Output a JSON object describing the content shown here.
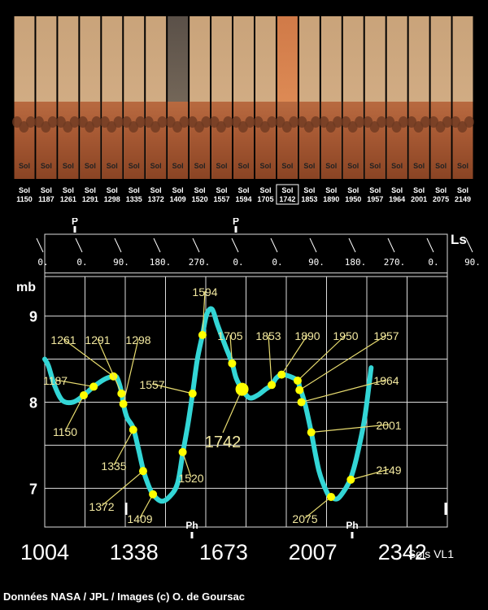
{
  "panorama": {
    "sol_prefix": "Sol",
    "strips": [
      {
        "sol": "1150",
        "tone": "normal"
      },
      {
        "sol": "1187",
        "tone": "normal"
      },
      {
        "sol": "1261",
        "tone": "normal"
      },
      {
        "sol": "1291",
        "tone": "normal"
      },
      {
        "sol": "1298",
        "tone": "normal"
      },
      {
        "sol": "1335",
        "tone": "normal"
      },
      {
        "sol": "1372",
        "tone": "normal"
      },
      {
        "sol": "1409",
        "tone": "dark"
      },
      {
        "sol": "1520",
        "tone": "normal"
      },
      {
        "sol": "1557",
        "tone": "normal"
      },
      {
        "sol": "1594",
        "tone": "normal"
      },
      {
        "sol": "1705",
        "tone": "normal"
      },
      {
        "sol": "1742",
        "tone": "dusty",
        "boxed": true
      },
      {
        "sol": "1853",
        "tone": "normal"
      },
      {
        "sol": "1890",
        "tone": "normal"
      },
      {
        "sol": "1950",
        "tone": "normal"
      },
      {
        "sol": "1957",
        "tone": "normal"
      },
      {
        "sol": "1964",
        "tone": "normal"
      },
      {
        "sol": "2001",
        "tone": "normal"
      },
      {
        "sol": "2075",
        "tone": "normal"
      },
      {
        "sol": "2149",
        "tone": "normal"
      }
    ]
  },
  "chart_data": {
    "type": "line",
    "ylabel": "mb",
    "yticks": [
      "9",
      "8",
      "7"
    ],
    "ylim": [
      6.55,
      9.95
    ],
    "xlim": [
      1004,
      2510
    ],
    "xticks": [
      "1004",
      "1338",
      "1673",
      "2007",
      "2342"
    ],
    "xlabel": "Sols VL1",
    "top_axis_label": "Ls",
    "ls_ticks": [
      "0.",
      "0.",
      "90.",
      "180.",
      "270.",
      "0.",
      "0.",
      "90.",
      "180.",
      "270.",
      "0.",
      "90."
    ],
    "top_markers": [
      "P",
      "P"
    ],
    "bottom_markers": [
      "Ph",
      "Ph"
    ],
    "grid": true,
    "line_color": "#33d6d6",
    "point_color": "#ffff00",
    "label_color": "#f2e8a0",
    "series": [
      {
        "x": [
          1004,
          1018,
          1040,
          1070,
          1110,
          1150,
          1187,
          1230,
          1261,
          1275,
          1291,
          1298,
          1312,
          1335,
          1355,
          1372,
          1390,
          1409,
          1440,
          1470,
          1500,
          1520,
          1540,
          1557,
          1575,
          1594,
          1610,
          1630,
          1650,
          1680,
          1705,
          1720,
          1742,
          1770,
          1800,
          1830,
          1853,
          1870,
          1890,
          1920,
          1950,
          1957,
          1964,
          1980,
          2001,
          2030,
          2060,
          2075,
          2100,
          2130,
          2149,
          2170,
          2200,
          2225
        ],
        "y": [
          8.5,
          8.42,
          8.2,
          8.02,
          8.0,
          8.08,
          8.18,
          8.27,
          8.3,
          8.28,
          8.12,
          7.98,
          7.82,
          7.7,
          7.45,
          7.22,
          7.05,
          6.93,
          6.85,
          6.9,
          7.05,
          7.4,
          7.75,
          8.1,
          8.5,
          8.78,
          9.02,
          9.08,
          8.9,
          8.65,
          8.45,
          8.28,
          8.15,
          8.05,
          8.08,
          8.15,
          8.2,
          8.28,
          8.32,
          8.3,
          8.25,
          8.18,
          8.12,
          7.95,
          7.65,
          7.2,
          6.95,
          6.9,
          6.88,
          7.0,
          7.12,
          7.35,
          7.8,
          8.4
        ]
      }
    ],
    "points": [
      {
        "sol": 1150,
        "p": 8.08,
        "label": "1150"
      },
      {
        "sol": 1187,
        "p": 8.18,
        "label": "1187"
      },
      {
        "sol": 1261,
        "p": 8.3,
        "label": "1261"
      },
      {
        "sol": 1291,
        "p": 8.1,
        "label": "1291"
      },
      {
        "sol": 1298,
        "p": 7.98,
        "label": "1298"
      },
      {
        "sol": 1335,
        "p": 7.68,
        "label": "1335"
      },
      {
        "sol": 1372,
        "p": 7.2,
        "label": "1372"
      },
      {
        "sol": 1409,
        "p": 6.93,
        "label": "1409"
      },
      {
        "sol": 1520,
        "p": 7.42,
        "label": "1520"
      },
      {
        "sol": 1557,
        "p": 8.1,
        "label": "1557"
      },
      {
        "sol": 1594,
        "p": 8.78,
        "label": "1594"
      },
      {
        "sol": 1705,
        "p": 8.45,
        "label": "1705"
      },
      {
        "sol": 1742,
        "p": 8.15,
        "label": "1742",
        "major": true
      },
      {
        "sol": 1853,
        "p": 8.2,
        "label": "1853"
      },
      {
        "sol": 1890,
        "p": 8.32,
        "label": "1890"
      },
      {
        "sol": 1950,
        "p": 8.25,
        "label": "1950"
      },
      {
        "sol": 1957,
        "p": 8.14,
        "label": "1957"
      },
      {
        "sol": 1964,
        "p": 8.0,
        "label": "1964"
      },
      {
        "sol": 2001,
        "p": 7.65,
        "label": "2001"
      },
      {
        "sol": 2075,
        "p": 6.9,
        "label": "2075"
      },
      {
        "sol": 2149,
        "p": 7.1,
        "label": "2149"
      }
    ]
  },
  "credit": "Données NASA / JPL / Images (c) O. de Goursac"
}
